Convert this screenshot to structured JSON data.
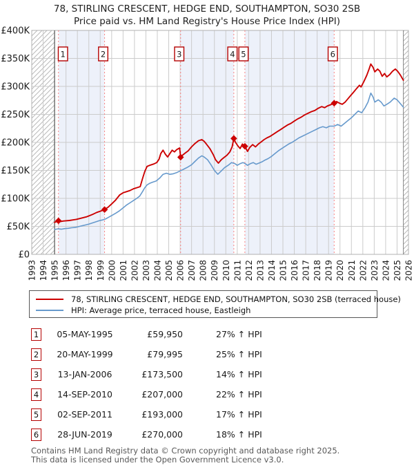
{
  "title": {
    "line1": "78, STIRLING CRESCENT, HEDGE END, SOUTHAMPTON, SO30 2SB",
    "line2": "Price paid vs. HM Land Registry's House Price Index (HPI)"
  },
  "legend": [
    {
      "label": "78, STIRLING CRESCENT, HEDGE END, SOUTHAMPTON, SO30 2SB (terraced house)",
      "color": "#cc0000"
    },
    {
      "label": "HPI: Average price, terraced house, Eastleigh",
      "color": "#6699cc"
    }
  ],
  "table": {
    "rows": [
      {
        "num": "1",
        "date": "05-MAY-1995",
        "price": "£59,950",
        "hpi": "27% ↑ HPI"
      },
      {
        "num": "2",
        "date": "20-MAY-1999",
        "price": "£79,995",
        "hpi": "25% ↑ HPI"
      },
      {
        "num": "3",
        "date": "13-JAN-2006",
        "price": "£173,500",
        "hpi": "14% ↑ HPI"
      },
      {
        "num": "4",
        "date": "14-SEP-2010",
        "price": "£207,000",
        "hpi": "22% ↑ HPI"
      },
      {
        "num": "5",
        "date": "02-SEP-2011",
        "price": "£193,000",
        "hpi": "17% ↑ HPI"
      },
      {
        "num": "6",
        "date": "28-JUN-2019",
        "price": "£270,000",
        "hpi": "18% ↑ HPI"
      }
    ]
  },
  "footer": {
    "line1": "Contains HM Land Registry data © Crown copyright and database right 2025.",
    "line2": "This data is licensed under the Open Government Licence v3.0."
  },
  "chart_data": {
    "type": "line",
    "title": "78, STIRLING CRESCENT, HEDGE END, SOUTHAMPTON, SO30 2SB — Price paid vs. HPI",
    "x_range": [
      1993,
      2026
    ],
    "y_range_gbp": [
      0,
      400000
    ],
    "grid": true,
    "y_ticks": [
      "£0",
      "£50K",
      "£100K",
      "£150K",
      "£200K",
      "£250K",
      "£300K",
      "£350K",
      "£400K"
    ],
    "x_ticks": [
      "1993",
      "1994",
      "1995",
      "1996",
      "1997",
      "1998",
      "1999",
      "2000",
      "2001",
      "2002",
      "2003",
      "2004",
      "2005",
      "2006",
      "2007",
      "2008",
      "2009",
      "2010",
      "2011",
      "2012",
      "2013",
      "2014",
      "2015",
      "2016",
      "2017",
      "2018",
      "2019",
      "2020",
      "2021",
      "2022",
      "2023",
      "2024",
      "2025",
      "2026"
    ],
    "colors": {
      "red": "#cc0000",
      "blue": "#6699cc",
      "band": "#edf1fa",
      "dashed": "#f98181",
      "grid": "#cbcbcb",
      "hatch": "#b9b9b9",
      "border": "#b0b0b0",
      "axis_dark": "#555555",
      "box_border": "#b40000"
    },
    "shaded_intervals": [
      [
        1995.34,
        1999.38
      ],
      [
        2006.04,
        2010.7
      ],
      [
        2011.67,
        2019.49
      ]
    ],
    "hatch_regions": [
      [
        1993,
        1995
      ],
      [
        2025.55,
        2026
      ]
    ],
    "sales": [
      {
        "num": "1",
        "year": 1995.34,
        "date": "05-MAY-1995",
        "price": 59950,
        "pct_vs_hpi": "27% ↑"
      },
      {
        "num": "2",
        "year": 1999.38,
        "date": "20-MAY-1999",
        "price": 79995,
        "pct_vs_hpi": "25% ↑"
      },
      {
        "num": "3",
        "year": 2006.04,
        "date": "13-JAN-2006",
        "price": 173500,
        "pct_vs_hpi": "14% ↑"
      },
      {
        "num": "4",
        "year": 2010.7,
        "date": "14-SEP-2010",
        "price": 207000,
        "pct_vs_hpi": "22% ↑"
      },
      {
        "num": "5",
        "year": 2011.67,
        "date": "02-SEP-2011",
        "price": 193000,
        "pct_vs_hpi": "17% ↑"
      },
      {
        "num": "6",
        "year": 2019.49,
        "date": "28-JUN-2019",
        "price": 270000,
        "pct_vs_hpi": "18% ↑"
      }
    ],
    "series": [
      {
        "name": "78, STIRLING CRESCENT, HEDGE END, SOUTHAMPTON, SO30 2SB (terraced house)",
        "color": "#cc0000",
        "points_unit": "thousand_gbp",
        "points": [
          [
            1995.0,
            57
          ],
          [
            1995.17,
            58.5
          ],
          [
            1995.34,
            60
          ],
          [
            1995.5,
            58.5
          ],
          [
            1995.75,
            59.5
          ],
          [
            1996.0,
            60
          ],
          [
            1996.3,
            60.5
          ],
          [
            1996.6,
            61.5
          ],
          [
            1996.9,
            62.5
          ],
          [
            1997.2,
            64
          ],
          [
            1997.5,
            65.5
          ],
          [
            1997.8,
            67
          ],
          [
            1998.1,
            69.5
          ],
          [
            1998.4,
            72
          ],
          [
            1998.7,
            75
          ],
          [
            1999.0,
            77
          ],
          [
            1999.2,
            78.5
          ],
          [
            1999.38,
            80
          ],
          [
            1999.7,
            84.5
          ],
          [
            2000.0,
            90
          ],
          [
            2000.35,
            97
          ],
          [
            2000.7,
            106
          ],
          [
            2001.0,
            110
          ],
          [
            2001.3,
            112
          ],
          [
            2001.6,
            114
          ],
          [
            2001.9,
            117
          ],
          [
            2002.2,
            119
          ],
          [
            2002.5,
            121
          ],
          [
            2002.7,
            135
          ],
          [
            2002.9,
            148
          ],
          [
            2003.1,
            157
          ],
          [
            2003.4,
            159.5
          ],
          [
            2003.7,
            161.5
          ],
          [
            2003.95,
            164
          ],
          [
            2004.15,
            170
          ],
          [
            2004.3,
            180
          ],
          [
            2004.5,
            186
          ],
          [
            2004.7,
            179
          ],
          [
            2004.9,
            174
          ],
          [
            2005.1,
            180
          ],
          [
            2005.3,
            186
          ],
          [
            2005.5,
            183
          ],
          [
            2005.7,
            187
          ],
          [
            2005.95,
            190
          ],
          [
            2006.04,
            173.5
          ],
          [
            2006.2,
            177
          ],
          [
            2006.45,
            181
          ],
          [
            2006.7,
            185
          ],
          [
            2007.0,
            192
          ],
          [
            2007.3,
            198
          ],
          [
            2007.6,
            203
          ],
          [
            2007.9,
            205
          ],
          [
            2008.1,
            202
          ],
          [
            2008.3,
            197
          ],
          [
            2008.6,
            189
          ],
          [
            2008.9,
            178
          ],
          [
            2009.1,
            169
          ],
          [
            2009.35,
            163
          ],
          [
            2009.6,
            169
          ],
          [
            2009.9,
            174
          ],
          [
            2010.1,
            177
          ],
          [
            2010.35,
            183
          ],
          [
            2010.55,
            192
          ],
          [
            2010.7,
            207
          ],
          [
            2010.85,
            200
          ],
          [
            2011.05,
            194
          ],
          [
            2011.25,
            189
          ],
          [
            2011.45,
            197
          ],
          [
            2011.67,
            193
          ],
          [
            2011.9,
            184
          ],
          [
            2012.1,
            191
          ],
          [
            2012.35,
            196
          ],
          [
            2012.6,
            192
          ],
          [
            2012.85,
            197
          ],
          [
            2013.1,
            201
          ],
          [
            2013.35,
            205
          ],
          [
            2013.6,
            208
          ],
          [
            2013.9,
            211
          ],
          [
            2014.2,
            215
          ],
          [
            2014.5,
            219
          ],
          [
            2014.8,
            223
          ],
          [
            2015.1,
            227
          ],
          [
            2015.4,
            231
          ],
          [
            2015.7,
            234
          ],
          [
            2016.0,
            238
          ],
          [
            2016.3,
            242
          ],
          [
            2016.6,
            245
          ],
          [
            2016.9,
            249
          ],
          [
            2017.2,
            252
          ],
          [
            2017.5,
            255
          ],
          [
            2017.8,
            257
          ],
          [
            2018.1,
            261
          ],
          [
            2018.4,
            264
          ],
          [
            2018.65,
            262
          ],
          [
            2018.9,
            265
          ],
          [
            2019.15,
            267
          ],
          [
            2019.49,
            270
          ],
          [
            2019.7,
            273
          ],
          [
            2019.95,
            270
          ],
          [
            2020.2,
            268
          ],
          [
            2020.45,
            272
          ],
          [
            2020.7,
            278
          ],
          [
            2020.95,
            284
          ],
          [
            2021.2,
            290
          ],
          [
            2021.45,
            296
          ],
          [
            2021.7,
            302
          ],
          [
            2021.85,
            299
          ],
          [
            2022.1,
            309
          ],
          [
            2022.35,
            320
          ],
          [
            2022.55,
            331
          ],
          [
            2022.7,
            340
          ],
          [
            2022.9,
            334
          ],
          [
            2023.05,
            326
          ],
          [
            2023.3,
            331
          ],
          [
            2023.5,
            327
          ],
          [
            2023.7,
            318
          ],
          [
            2023.9,
            323
          ],
          [
            2024.1,
            317
          ],
          [
            2024.35,
            321
          ],
          [
            2024.6,
            327
          ],
          [
            2024.85,
            331
          ],
          [
            2025.05,
            327
          ],
          [
            2025.3,
            320
          ],
          [
            2025.55,
            311
          ]
        ]
      },
      {
        "name": "HPI: Average price, terraced house, Eastleigh",
        "color": "#6699cc",
        "points_unit": "thousand_gbp",
        "points": [
          [
            1995.0,
            44.5
          ],
          [
            1995.3,
            45.5
          ],
          [
            1995.6,
            45
          ],
          [
            1995.9,
            46
          ],
          [
            1996.2,
            46.5
          ],
          [
            1996.5,
            47.5
          ],
          [
            1996.8,
            48
          ],
          [
            1997.1,
            49.5
          ],
          [
            1997.4,
            51
          ],
          [
            1997.7,
            52.5
          ],
          [
            1998.0,
            54
          ],
          [
            1998.3,
            56
          ],
          [
            1998.6,
            58
          ],
          [
            1998.9,
            60
          ],
          [
            1999.2,
            61.5
          ],
          [
            1999.5,
            63.5
          ],
          [
            1999.8,
            67
          ],
          [
            2000.1,
            70.5
          ],
          [
            2000.4,
            74
          ],
          [
            2000.7,
            78
          ],
          [
            2001.0,
            83
          ],
          [
            2001.3,
            88
          ],
          [
            2001.6,
            92
          ],
          [
            2001.9,
            96
          ],
          [
            2002.2,
            100
          ],
          [
            2002.45,
            104
          ],
          [
            2002.7,
            112
          ],
          [
            2002.9,
            119
          ],
          [
            2003.1,
            124
          ],
          [
            2003.35,
            127
          ],
          [
            2003.6,
            129
          ],
          [
            2003.9,
            131
          ],
          [
            2004.2,
            136
          ],
          [
            2004.5,
            143
          ],
          [
            2004.8,
            145
          ],
          [
            2005.1,
            143
          ],
          [
            2005.4,
            144
          ],
          [
            2005.7,
            146
          ],
          [
            2006.0,
            149
          ],
          [
            2006.3,
            152
          ],
          [
            2006.6,
            155
          ],
          [
            2007.0,
            160
          ],
          [
            2007.3,
            166
          ],
          [
            2007.6,
            172
          ],
          [
            2007.9,
            176
          ],
          [
            2008.1,
            174
          ],
          [
            2008.4,
            169
          ],
          [
            2008.7,
            160
          ],
          [
            2009.0,
            150
          ],
          [
            2009.3,
            143
          ],
          [
            2009.6,
            149
          ],
          [
            2009.9,
            155
          ],
          [
            2010.2,
            159
          ],
          [
            2010.5,
            164
          ],
          [
            2010.8,
            162
          ],
          [
            2011.0,
            159
          ],
          [
            2011.25,
            162
          ],
          [
            2011.5,
            164
          ],
          [
            2011.7,
            162
          ],
          [
            2011.9,
            159
          ],
          [
            2012.15,
            162
          ],
          [
            2012.4,
            164
          ],
          [
            2012.65,
            161
          ],
          [
            2012.9,
            163
          ],
          [
            2013.15,
            165
          ],
          [
            2013.4,
            168
          ],
          [
            2013.7,
            171
          ],
          [
            2014.0,
            175
          ],
          [
            2014.3,
            180
          ],
          [
            2014.6,
            185
          ],
          [
            2014.9,
            189
          ],
          [
            2015.2,
            193
          ],
          [
            2015.5,
            197
          ],
          [
            2015.8,
            200
          ],
          [
            2016.1,
            204
          ],
          [
            2016.4,
            208
          ],
          [
            2016.7,
            211
          ],
          [
            2017.0,
            214
          ],
          [
            2017.3,
            217
          ],
          [
            2017.6,
            220
          ],
          [
            2017.9,
            223
          ],
          [
            2018.2,
            226
          ],
          [
            2018.5,
            228
          ],
          [
            2018.8,
            226
          ],
          [
            2019.1,
            229
          ],
          [
            2019.49,
            229
          ],
          [
            2019.8,
            232
          ],
          [
            2020.1,
            229
          ],
          [
            2020.4,
            234
          ],
          [
            2020.7,
            239
          ],
          [
            2021.0,
            244
          ],
          [
            2021.3,
            250
          ],
          [
            2021.6,
            256
          ],
          [
            2021.9,
            253
          ],
          [
            2022.2,
            262
          ],
          [
            2022.45,
            272
          ],
          [
            2022.7,
            288
          ],
          [
            2022.9,
            281
          ],
          [
            2023.05,
            272
          ],
          [
            2023.35,
            276
          ],
          [
            2023.6,
            272
          ],
          [
            2023.85,
            265
          ],
          [
            2024.1,
            268
          ],
          [
            2024.4,
            272
          ],
          [
            2024.75,
            279
          ],
          [
            2025.0,
            276
          ],
          [
            2025.3,
            269
          ],
          [
            2025.55,
            263
          ]
        ]
      }
    ]
  }
}
